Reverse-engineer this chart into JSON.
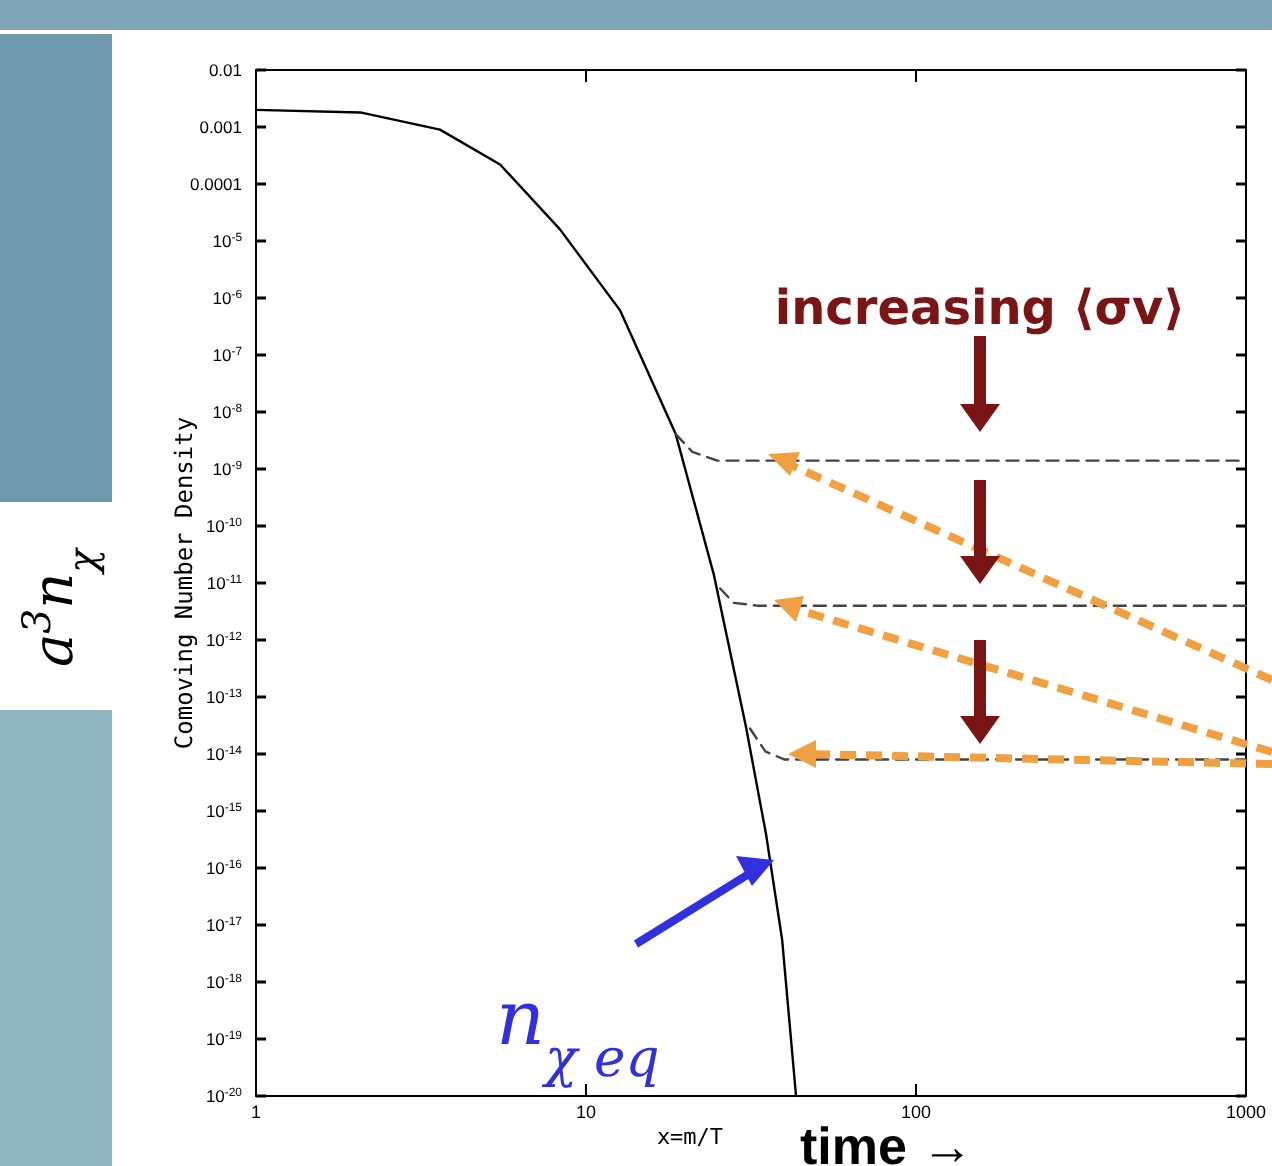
{
  "chart_data": {
    "type": "line",
    "xlabel": "x=m/T",
    "ylabel": "Comoving Number Density",
    "annotations": [
      "increasing ⟨σv⟩",
      "n$_{χ eq}$",
      "a$^{3}$n$_{χ}$",
      "time →"
    ],
    "xlim": [
      1,
      1000
    ],
    "ylim": [
      1e-20,
      0.01
    ],
    "log": "xy",
    "grid": false,
    "xticks": [
      1,
      10,
      100,
      1000
    ],
    "yticks": [
      0.01,
      0.001,
      0.0001,
      {
        "value": 1e-05,
        "label": "10$^{-5}$"
      },
      {
        "value": 1e-06,
        "label": "10$^{-6}$"
      },
      {
        "value": 1e-07,
        "label": "10$^{-7}$"
      },
      {
        "value": 1e-08,
        "label": "10$^{-8}$"
      },
      {
        "value": 1e-09,
        "label": "10$^{-9}$"
      },
      {
        "value": 1e-10,
        "label": "10$^{-10}$"
      },
      {
        "value": 1e-11,
        "label": "10$^{-11}$"
      },
      {
        "value": 1e-12,
        "label": "10$^{-12}$"
      },
      {
        "value": 1e-13,
        "label": "10$^{-13}$"
      },
      {
        "value": 1e-14,
        "label": "10$^{-14}$"
      },
      {
        "value": 1e-15,
        "label": "10$^{-15}$"
      },
      {
        "value": 1e-16,
        "label": "10$^{-16}$"
      },
      {
        "value": 1e-17,
        "label": "10$^{-17}$"
      },
      {
        "value": 1e-18,
        "label": "10$^{-18}$"
      },
      {
        "value": 1e-19,
        "label": "10$^{-19}$"
      },
      {
        "value": 1e-20,
        "label": "10$^{-20}$"
      }
    ],
    "series": [
      {
        "color": "#000000",
        "line_style": "solid",
        "x": [
          1,
          2.07,
          3.61,
          5.49,
          8.34,
          12.7,
          18.7,
          24.4,
          30.5,
          35.1,
          39.3,
          43.3
        ],
        "values": [
          0.002,
          0.0018,
          0.0009,
          0.00022,
          1.6e-05,
          6e-07,
          4.1e-09,
          1.4e-11,
          3.1e-14,
          4e-16,
          5.5e-18,
          1e-20
        ]
      },
      {
        "color": "#444444",
        "line_style": "dashed",
        "x": [
          18.7,
          21,
          25,
          1000
        ],
        "values": [
          4.1e-09,
          2e-09,
          1.4e-09,
          1.4e-09
        ]
      },
      {
        "color": "#444444",
        "line_style": "dashed",
        "x": [
          25.5,
          28,
          33,
          1000
        ],
        "values": [
          8e-12,
          4.5e-12,
          4e-12,
          4e-12
        ]
      },
      {
        "color": "#444444",
        "line_style": "dashed",
        "x": [
          31.4,
          35,
          40,
          1000
        ],
        "values": [
          2.8e-14,
          1.1e-14,
          8e-15,
          8e-15
        ]
      }
    ]
  }
}
